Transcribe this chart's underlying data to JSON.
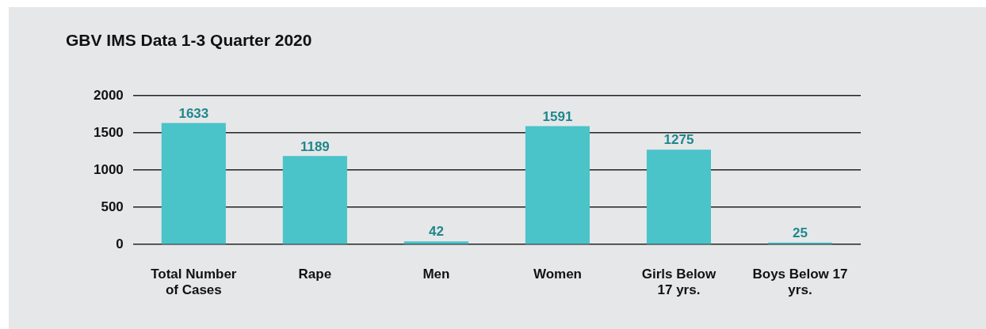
{
  "chart_data": {
    "type": "bar",
    "title": "GBV IMS Data 1-3 Quarter 2020",
    "categories": [
      "Total Number of Cases",
      "Rape",
      "Men",
      "Women",
      "Girls Below 17 yrs.",
      "Boys Below 17 yrs."
    ],
    "values": [
      1633,
      1189,
      42,
      1591,
      1275,
      25
    ],
    "color": "#4ac3c9",
    "ylim": [
      0,
      2000
    ],
    "yticks": [
      0,
      500,
      1000,
      1500,
      2000
    ],
    "grid": "y",
    "data_labels": true
  }
}
